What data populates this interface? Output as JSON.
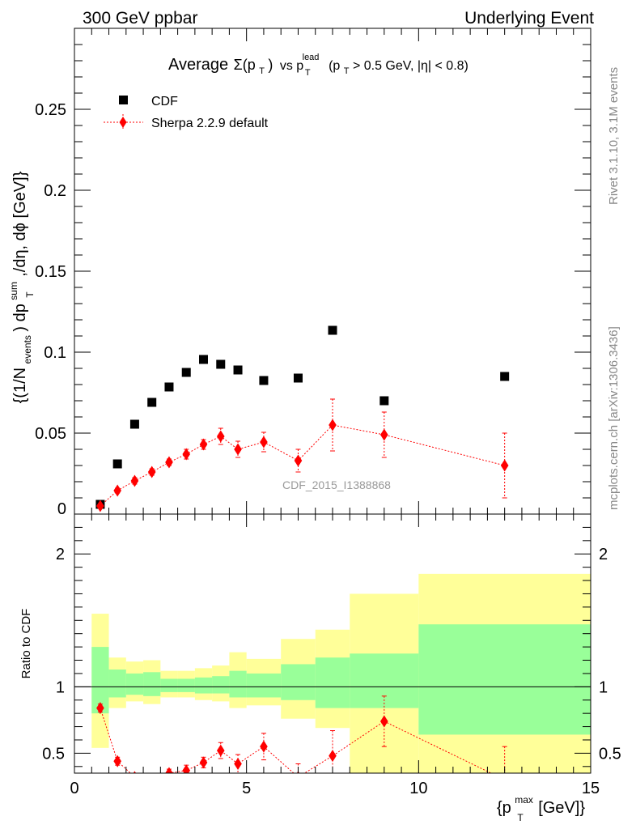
{
  "header": {
    "left": "300 GeV ppbar",
    "right": "Underlying Event"
  },
  "side_labels": {
    "rivet": "Rivet 3.1.10,  3.1M events",
    "mcplots": "mcplots.cern.ch [arXiv:1306.3436]"
  },
  "colors": {
    "data": "#000000",
    "mc": "#ff0000",
    "band_inner": "#99ff99",
    "band_outer": "#ffff99"
  },
  "chart_data": [
    {
      "type": "scatter",
      "title_parts": {
        "average": "Average",
        "sigma": "Σ(p",
        "T": "T",
        "close": ")",
        "vs": "vs  p",
        "lead": "lead",
        "cut_open": "(p",
        "cut_close": " > 0.5 GeV, |η| < 0.8)"
      },
      "ylabel_parts": {
        "open": "{(1/N",
        "events": "events",
        "mid": ") dp",
        "sum": "sum",
        "T": "T",
        "tail": ",/dη, dϕ [GeV]}"
      },
      "watermark": "CDF_2015_I1388868",
      "xlim": [
        0,
        15
      ],
      "ylim": [
        0,
        0.3
      ],
      "yticks": [
        0,
        0.05,
        0.1,
        0.15,
        0.2,
        0.25
      ],
      "ytick_labels": [
        "0",
        "0.05",
        "0.1",
        "0.15",
        "0.2",
        "0.25"
      ],
      "legend_placement": "top-left",
      "series": [
        {
          "name": "CDF",
          "marker": "square",
          "x": [
            0.75,
            1.25,
            1.75,
            2.25,
            2.75,
            3.25,
            3.75,
            4.25,
            4.75,
            5.5,
            6.5,
            7.5,
            9.0,
            12.5
          ],
          "y": [
            0.006,
            0.031,
            0.0555,
            0.069,
            0.0785,
            0.0875,
            0.0955,
            0.0925,
            0.089,
            0.0825,
            0.084,
            0.1135,
            0.07,
            0.085
          ]
        },
        {
          "name": "Sherpa 2.2.9 default",
          "marker": "diamond",
          "x": [
            0.75,
            1.25,
            1.75,
            2.25,
            2.75,
            3.25,
            3.75,
            4.25,
            4.75,
            5.5,
            6.5,
            7.5,
            9.0,
            12.5
          ],
          "y": [
            0.005,
            0.0145,
            0.0205,
            0.026,
            0.032,
            0.037,
            0.043,
            0.048,
            0.04,
            0.0445,
            0.033,
            0.055,
            0.049,
            0.03
          ],
          "yerr": [
            0.001,
            0.0015,
            0.002,
            0.002,
            0.002,
            0.003,
            0.003,
            0.005,
            0.005,
            0.006,
            0.007,
            0.016,
            0.014,
            0.02
          ]
        }
      ]
    },
    {
      "type": "line",
      "ylabel": "Ratio to CDF",
      "xlabel_parts": {
        "open": "{p",
        "max": "max",
        "T": "T",
        "tail": " [GeV]}"
      },
      "xlim": [
        0,
        15
      ],
      "ylim": [
        0.35,
        2.3
      ],
      "xticks": [
        0,
        5,
        10,
        15
      ],
      "xtick_labels": [
        "0",
        "5",
        "10",
        "15"
      ],
      "yticks": [
        0.5,
        1,
        2
      ],
      "ytick_labels": [
        "0.5",
        "1",
        "2"
      ],
      "reference_line": 1,
      "bands": {
        "edges": [
          0.5,
          1.0,
          1.5,
          2.0,
          2.5,
          3.0,
          3.5,
          4.0,
          4.5,
          5.0,
          6.0,
          7.0,
          8.0,
          10.0,
          15.0
        ],
        "inner_up": [
          1.3,
          1.13,
          1.1,
          1.11,
          1.06,
          1.06,
          1.07,
          1.08,
          1.12,
          1.1,
          1.17,
          1.22,
          1.25,
          1.47
        ],
        "inner_down": [
          0.8,
          0.92,
          0.94,
          0.93,
          0.96,
          0.96,
          0.95,
          0.95,
          0.92,
          0.92,
          0.9,
          0.84,
          0.84,
          0.64
        ],
        "outer_up": [
          1.55,
          1.22,
          1.19,
          1.2,
          1.12,
          1.12,
          1.14,
          1.16,
          1.26,
          1.21,
          1.36,
          1.43,
          1.7,
          1.85
        ],
        "outer_down": [
          0.54,
          0.84,
          0.89,
          0.87,
          0.92,
          0.92,
          0.9,
          0.89,
          0.84,
          0.86,
          0.76,
          0.69,
          0.35,
          0.35
        ]
      },
      "series": [
        {
          "name": "Sherpa 2.2.9 default",
          "x": [
            0.75,
            1.25,
            1.75,
            2.25,
            2.75,
            3.25,
            3.75,
            4.25,
            4.75,
            5.5,
            6.5,
            7.5,
            9.0,
            12.5
          ],
          "y": [
            0.84,
            0.44,
            0.32,
            0.28,
            0.35,
            0.37,
            0.43,
            0.52,
            0.42,
            0.55,
            0.32,
            0.48,
            0.74,
            0.3
          ],
          "yerr": [
            0.03,
            0.03,
            0.03,
            0.03,
            0.03,
            0.04,
            0.04,
            0.06,
            0.07,
            0.1,
            0.1,
            0.19,
            0.19,
            0.25
          ]
        }
      ]
    }
  ],
  "legend": [
    {
      "label": "CDF",
      "marker": "square"
    },
    {
      "label": "Sherpa 2.2.9 default",
      "marker": "diamond"
    }
  ]
}
